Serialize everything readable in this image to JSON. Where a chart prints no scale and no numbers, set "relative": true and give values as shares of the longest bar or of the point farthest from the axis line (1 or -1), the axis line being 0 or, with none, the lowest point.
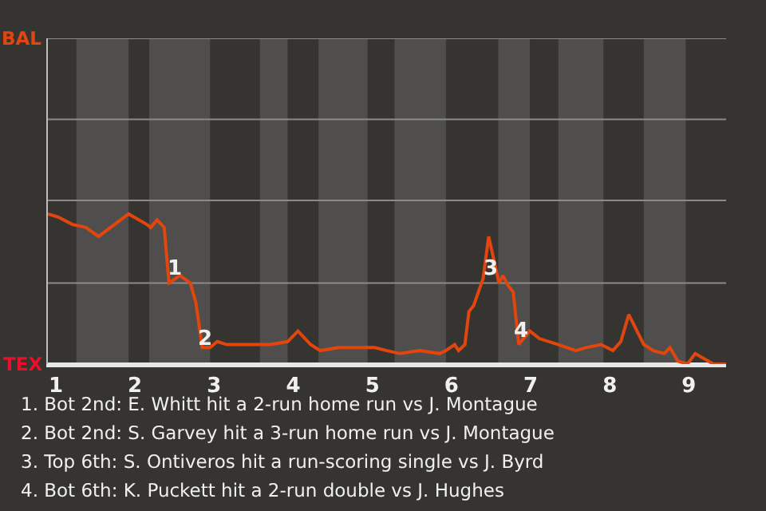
{
  "chart_data": {
    "type": "line",
    "x": [
      0.9,
      1.03,
      1.21,
      1.38,
      1.54,
      1.92,
      2.15,
      2.2,
      2.28,
      2.37,
      2.43,
      2.57,
      2.7,
      2.77,
      2.85,
      2.95,
      3.04,
      3.16,
      3.36,
      3.42,
      3.6,
      3.71,
      3.93,
      4.06,
      4.22,
      4.34,
      4.58,
      4.68,
      4.94,
      5.03,
      5.18,
      5.35,
      5.6,
      5.85,
      5.93,
      6.04,
      6.09,
      6.17,
      6.22,
      6.28,
      6.4,
      6.47,
      6.6,
      6.65,
      6.72,
      6.78,
      6.85,
      6.91,
      6.99,
      7.11,
      7.35,
      7.57,
      7.7,
      7.89,
      8.04,
      8.14,
      8.24,
      8.43,
      8.55,
      8.69,
      8.76,
      8.86,
      8.98,
      9.08,
      9.31,
      9.41,
      9.47
    ],
    "series": [
      {
        "color": "#e2460e",
        "values": [
          1.0,
          0.98,
          0.93,
          0.91,
          0.85,
          1.0,
          0.93,
          0.91,
          0.96,
          0.91,
          0.54,
          0.59,
          0.54,
          0.41,
          0.11,
          0.11,
          0.15,
          0.13,
          0.13,
          0.13,
          0.13,
          0.13,
          0.15,
          0.22,
          0.13,
          0.09,
          0.11,
          0.11,
          0.11,
          0.11,
          0.09,
          0.07,
          0.09,
          0.07,
          0.09,
          0.13,
          0.09,
          0.13,
          0.35,
          0.39,
          0.57,
          0.85,
          0.54,
          0.59,
          0.52,
          0.48,
          0.13,
          0.17,
          0.22,
          0.17,
          0.13,
          0.09,
          0.11,
          0.13,
          0.09,
          0.15,
          0.33,
          0.13,
          0.09,
          0.07,
          0.11,
          0.02,
          0,
          0.07,
          0,
          0,
          0
        ]
      }
    ],
    "relative": true,
    "xlim": [
      0.9,
      9.47
    ],
    "xticks": [
      1,
      2,
      3,
      4,
      5,
      6,
      7,
      8,
      9
    ],
    "ref_lines": [
      {
        "axis": "y",
        "value": 2.17,
        "label": "BAL",
        "color": "#8a8a88"
      },
      {
        "axis": "y",
        "value": 1.63,
        "label": null,
        "color": "#8a8a88"
      },
      {
        "axis": "y",
        "value": 1.09,
        "label": null,
        "color": "#8a8a88"
      },
      {
        "axis": "y",
        "value": 0.54,
        "label": null,
        "color": "#8a8a88"
      },
      {
        "axis": "y",
        "value": 0,
        "label": "TEX",
        "color": "#e8e8e8"
      }
    ],
    "marker": "none",
    "line_style": "solid",
    "bands": [
      {
        "axis": "x",
        "from": 1.26,
        "to": 1.92,
        "color": "#4f4e4c"
      },
      {
        "axis": "x",
        "from": 2.18,
        "to": 2.95,
        "color": "#4f4e4c"
      },
      {
        "axis": "x",
        "from": 3.58,
        "to": 3.93,
        "color": "#4f4e4c"
      },
      {
        "axis": "x",
        "from": 4.32,
        "to": 4.94,
        "color": "#4f4e4c"
      },
      {
        "axis": "x",
        "from": 5.28,
        "to": 5.93,
        "color": "#4f4e4c"
      },
      {
        "axis": "x",
        "from": 6.59,
        "to": 6.99,
        "color": "#4f4e4c"
      },
      {
        "axis": "x",
        "from": 7.35,
        "to": 7.92,
        "color": "#4f4e4c"
      },
      {
        "axis": "x",
        "from": 8.43,
        "to": 8.96,
        "color": "#4f4e4c"
      }
    ],
    "annotations": [
      {
        "text": "1",
        "x": 2.5,
        "y": 0.63
      },
      {
        "text": "2",
        "x": 2.88,
        "y": 0.17
      },
      {
        "text": "3",
        "x": 6.5,
        "y": 0.63
      },
      {
        "text": "4",
        "x": 6.88,
        "y": 0.22
      },
      "1. Bot 2nd: E. Whitt hit a 2-run home run vs J. Montague",
      "2. Bot 2nd: S. Garvey hit a 3-run home run vs J. Montague",
      "3. Top 6th: S. Ontiveros hit a run-scoring single vs J. Byrd",
      "4. Bot 6th: K. Puckett hit a 2-run double vs J. Hughes"
    ]
  }
}
